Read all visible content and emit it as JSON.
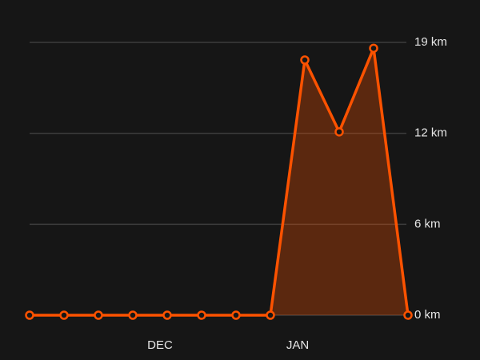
{
  "chart_data": {
    "type": "area",
    "categories": [
      null,
      null,
      null,
      null,
      "DEC",
      null,
      null,
      null,
      "JAN",
      null,
      null,
      null
    ],
    "series": [
      {
        "color": "#fc5200",
        "values": [
          0,
          0,
          0,
          0,
          0,
          0,
          0,
          0,
          17.4,
          12.5,
          18.2,
          0
        ]
      }
    ],
    "ylim": [
      0,
      18.6
    ],
    "yticks": [
      {
        "value": 0,
        "label": "0 km"
      },
      {
        "value": 6.2,
        "label": "6 km"
      },
      {
        "value": 12.4,
        "label": "12 km"
      },
      {
        "value": 18.6,
        "label": "19 km"
      }
    ],
    "grid": true
  }
}
